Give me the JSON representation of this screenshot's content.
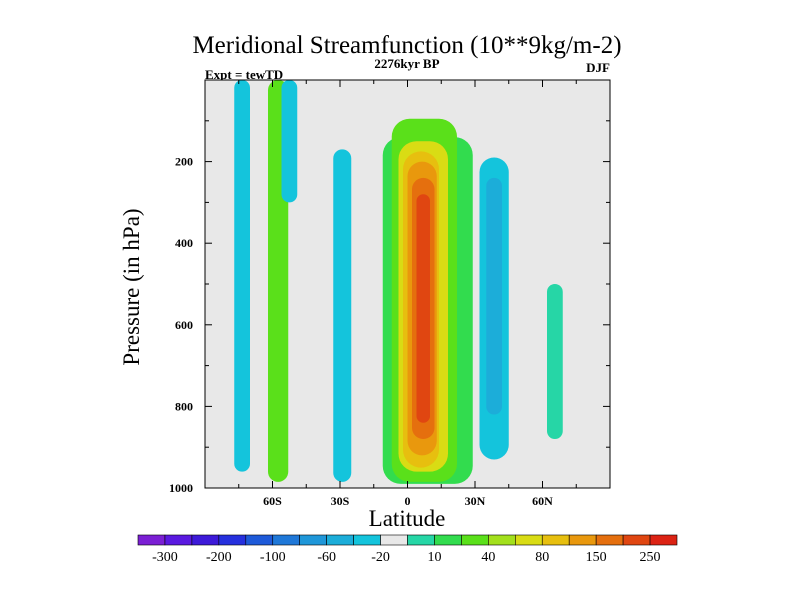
{
  "chart_data": {
    "type": "heatmap",
    "title": "Meridional Streamfunction (10**9kg/m-2)",
    "left_label": "Expt = tewTD",
    "center_label": "2276kyr BP",
    "right_label": "DJF",
    "xlabel": "Latitude",
    "ylabel": "Pressure (in hPa)",
    "xlim": [
      -90,
      90
    ],
    "ylim": [
      1000,
      0
    ],
    "x_ticks": [
      -60,
      -30,
      0,
      30,
      60
    ],
    "x_tick_labels": [
      "60S",
      "30S",
      "0",
      "30N",
      "60N"
    ],
    "y_ticks": [
      200,
      400,
      600,
      800,
      1000
    ],
    "y_tick_labels": [
      "200",
      "400",
      "600",
      "800",
      "1000"
    ],
    "levels": [
      -300,
      -250,
      -200,
      -150,
      -100,
      -80,
      -60,
      -40,
      -20,
      -10,
      10,
      20,
      40,
      60,
      80,
      100,
      150,
      200,
      250,
      300
    ],
    "colorbar_labels": [
      "-300",
      "-200",
      "-100",
      "-60",
      "-20",
      "10",
      "40",
      "80",
      "150",
      "250"
    ],
    "colorbar_label_levels": [
      -300,
      -200,
      -100,
      -60,
      -20,
      10,
      40,
      80,
      150,
      250
    ],
    "colors": [
      "#7b1fd4",
      "#5a19e0",
      "#3d1ad9",
      "#2630de",
      "#1e5ad9",
      "#1f78d8",
      "#1f97d9",
      "#1cadd9",
      "#14c4dc",
      "#e8e8e8",
      "#26d6a6",
      "#32dc4e",
      "#5ae01a",
      "#a3e01c",
      "#d9dc14",
      "#e7bf0f",
      "#e9980d",
      "#e56f0e",
      "#e04611",
      "#dc2314"
    ],
    "background_color": "#e8e8e8",
    "cells": [
      {
        "x": [
          -77,
          -70
        ],
        "p": [
          0,
          960
        ],
        "value": -20
      },
      {
        "x": [
          -62,
          -53
        ],
        "p": [
          0,
          985
        ],
        "value": 40
      },
      {
        "x": [
          -56,
          -49
        ],
        "p": [
          0,
          300
        ],
        "value": -20
      },
      {
        "x": [
          -33,
          -25
        ],
        "p": [
          170,
          985
        ],
        "value": -20
      },
      {
        "x": [
          -11,
          29
        ],
        "p": [
          140,
          990
        ],
        "value": 20
      },
      {
        "x": [
          -7,
          22
        ],
        "p": [
          95,
          985
        ],
        "value": 40
      },
      {
        "x": [
          -4,
          18
        ],
        "p": [
          150,
          960
        ],
        "value": 80
      },
      {
        "x": [
          -2,
          14
        ],
        "p": [
          175,
          950
        ],
        "value": 100
      },
      {
        "x": [
          0,
          13
        ],
        "p": [
          200,
          920
        ],
        "value": 150
      },
      {
        "x": [
          2,
          12
        ],
        "p": [
          240,
          880
        ],
        "value": 200
      },
      {
        "x": [
          4,
          10
        ],
        "p": [
          280,
          840
        ],
        "value": 250
      },
      {
        "x": [
          32,
          45
        ],
        "p": [
          190,
          930
        ],
        "value": -20
      },
      {
        "x": [
          35,
          42
        ],
        "p": [
          240,
          820
        ],
        "value": -40
      },
      {
        "x": [
          62,
          69
        ],
        "p": [
          500,
          880
        ],
        "value": 10
      }
    ]
  }
}
